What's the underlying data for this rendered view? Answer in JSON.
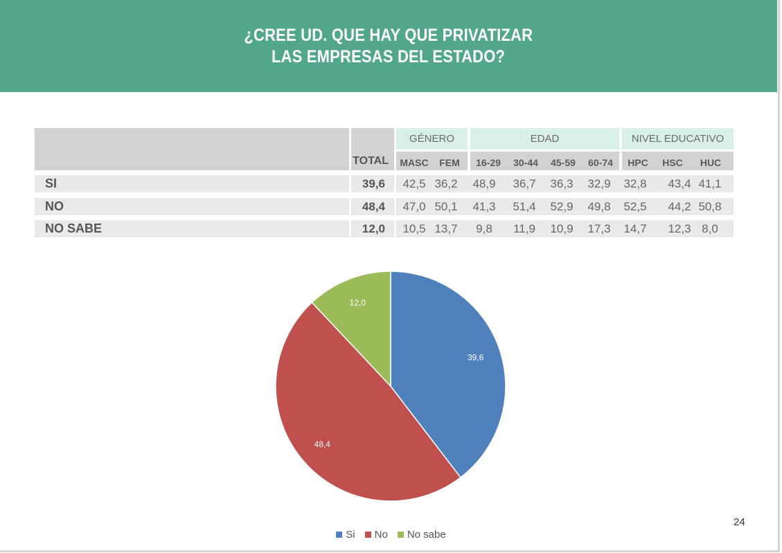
{
  "header": {
    "title_line1": "¿CREE UD. QUE HAY QUE PRIVATIZAR",
    "title_line2": "LAS EMPRESAS DEL ESTADO?"
  },
  "colors": {
    "header_bg": "#52a68b",
    "si": "#4f81bd",
    "no": "#c0504d",
    "no_sabe": "#9bbb59"
  },
  "table": {
    "total_label": "TOTAL",
    "groups": {
      "genero": "GÉNERO",
      "edad": "EDAD",
      "nivel": "NIVEL EDUCATIVO"
    },
    "columns": [
      "MASC",
      "FEM",
      "16-29",
      "30-44",
      "45-59",
      "60-74",
      "HPC",
      "HSC",
      "HUC"
    ],
    "rows": [
      {
        "label": "SI",
        "total": "39,6",
        "values": [
          "42,5",
          "36,2",
          "48,9",
          "36,7",
          "36,3",
          "32,9",
          "32,8",
          "43,4",
          "41,1"
        ]
      },
      {
        "label": "NO",
        "total": "48,4",
        "values": [
          "47,0",
          "50,1",
          "41,3",
          "51,4",
          "52,9",
          "49,8",
          "52,5",
          "44,2",
          "50,8"
        ]
      },
      {
        "label": "NO SABE",
        "total": "12,0",
        "values": [
          "10,5",
          "13,7",
          "9,8",
          "11,9",
          "10,9",
          "17,3",
          "14,7",
          "12,3",
          "8,0"
        ]
      }
    ]
  },
  "chart_data": {
    "type": "pie",
    "title": "",
    "categories": [
      "Si",
      "No",
      "No sabe"
    ],
    "values": [
      39.6,
      48.4,
      12.0
    ],
    "data_labels": [
      "39,6",
      "48,4",
      "12,0"
    ],
    "legend": "bottom"
  },
  "legend": {
    "si": "Si",
    "no": "No",
    "no_sabe": "No sabe"
  },
  "page_number": "24"
}
